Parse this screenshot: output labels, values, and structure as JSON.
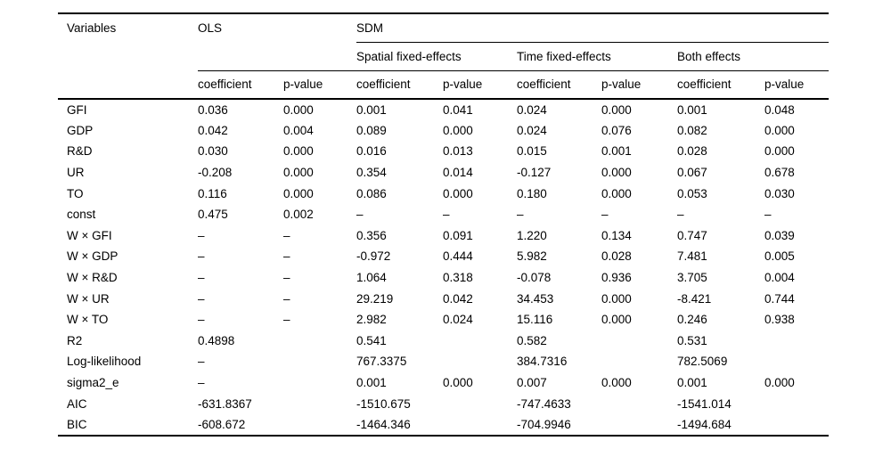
{
  "table": {
    "header": {
      "variables_label": "Variables",
      "ols_label": "OLS",
      "sdm_label": "SDM",
      "sdm_groups": {
        "spatial": "Spatial fixed-effects",
        "time": "Time fixed-effects",
        "both": "Both effects"
      },
      "coefficient_label": "coefficient",
      "pvalue_label": "p-value"
    },
    "rows": [
      {
        "variable": "GFI",
        "cells": [
          "0.036",
          "0.000",
          "0.001",
          "0.041",
          "0.024",
          "0.000",
          "0.001",
          "0.048"
        ]
      },
      {
        "variable": "GDP",
        "cells": [
          "0.042",
          "0.004",
          "0.089",
          "0.000",
          "0.024",
          "0.076",
          "0.082",
          "0.000"
        ]
      },
      {
        "variable": "R&D",
        "cells": [
          "0.030",
          "0.000",
          "0.016",
          "0.013",
          "0.015",
          "0.001",
          "0.028",
          "0.000"
        ]
      },
      {
        "variable": "UR",
        "cells": [
          "-0.208",
          "0.000",
          "0.354",
          "0.014",
          "-0.127",
          "0.000",
          "0.067",
          "0.678"
        ]
      },
      {
        "variable": "TO",
        "cells": [
          "0.116",
          "0.000",
          "0.086",
          "0.000",
          "0.180",
          "0.000",
          "0.053",
          "0.030"
        ]
      },
      {
        "variable": "const",
        "cells": [
          "0.475",
          "0.002",
          "–",
          "–",
          "–",
          "–",
          "–",
          "–"
        ]
      },
      {
        "variable": "W × GFI",
        "cells": [
          "–",
          "–",
          "0.356",
          "0.091",
          "1.220",
          "0.134",
          "0.747",
          "0.039"
        ]
      },
      {
        "variable": "W × GDP",
        "cells": [
          "–",
          "–",
          "-0.972",
          "0.444",
          "5.982",
          "0.028",
          "7.481",
          "0.005"
        ]
      },
      {
        "variable": "W × R&D",
        "cells": [
          "–",
          "–",
          "1.064",
          "0.318",
          "-0.078",
          "0.936",
          "3.705",
          "0.004"
        ]
      },
      {
        "variable": "W × UR",
        "cells": [
          "–",
          "–",
          "29.219",
          "0.042",
          "34.453",
          "0.000",
          "-8.421",
          "0.744"
        ]
      },
      {
        "variable": "W × TO",
        "cells": [
          "–",
          "–",
          "2.982",
          "0.024",
          "15.116",
          "0.000",
          "0.246",
          "0.938"
        ]
      },
      {
        "variable": "R2",
        "cells": [
          "0.4898",
          "",
          "0.541",
          "",
          "0.582",
          "",
          "0.531",
          ""
        ]
      },
      {
        "variable": "Log-likelihood",
        "cells": [
          "–",
          "",
          "767.3375",
          "",
          "384.7316",
          "",
          "782.5069",
          ""
        ]
      },
      {
        "variable": "sigma2_e",
        "cells": [
          "–",
          "",
          "0.001",
          "0.000",
          "0.007",
          "0.000",
          "0.001",
          "0.000"
        ]
      },
      {
        "variable": "AIC",
        "cells": [
          "-631.8367",
          "",
          "-1510.675",
          "",
          "-747.4633",
          "",
          "-1541.014",
          ""
        ]
      },
      {
        "variable": "BIC",
        "cells": [
          "-608.672",
          "",
          "-1464.346",
          "",
          "-704.9946",
          "",
          "-1494.684",
          ""
        ]
      }
    ]
  }
}
